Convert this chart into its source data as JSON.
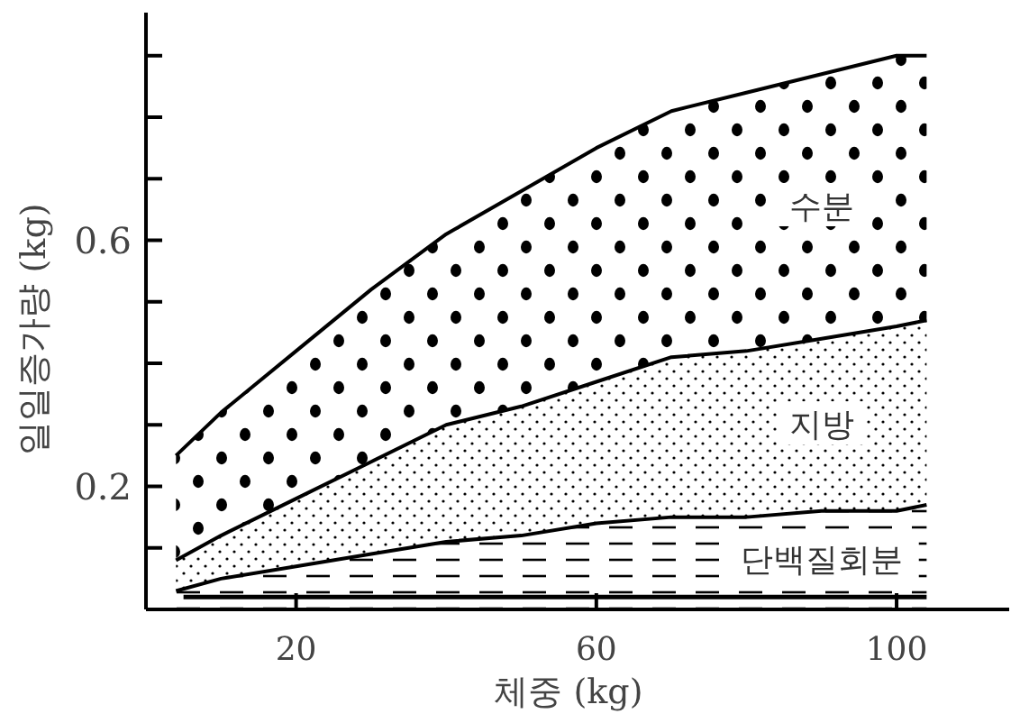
{
  "chart_data": {
    "type": "area",
    "stacked": true,
    "xlabel": "체중 (kg)",
    "ylabel": "일일증가량 (kg)",
    "xlim": [
      0,
      115
    ],
    "ylim": [
      0,
      0.97
    ],
    "xticks": [
      20,
      60,
      100
    ],
    "yticks": [
      {
        "value": 0.1,
        "label": null
      },
      0.2,
      {
        "value": 0.3,
        "label": null
      },
      {
        "value": 0.4,
        "label": null
      },
      {
        "value": 0.5,
        "label": null
      },
      0.6,
      {
        "value": 0.7,
        "label": null
      },
      {
        "value": 0.8,
        "label": null
      },
      {
        "value": 0.9,
        "label": null
      }
    ],
    "x": [
      4,
      10,
      20,
      30,
      40,
      50,
      60,
      70,
      80,
      90,
      100,
      104
    ],
    "series": [
      {
        "type": "line",
        "color": "#000000",
        "x": [
          5,
          104
        ],
        "values": [
          0.02,
          0.02
        ]
      },
      {
        "name": "단백질회분",
        "color": "#000000",
        "values": [
          0.03,
          0.05,
          0.07,
          0.09,
          0.11,
          0.12,
          0.14,
          0.15,
          0.15,
          0.16,
          0.16,
          0.17
        ]
      },
      {
        "name": "지방",
        "color": "#000000",
        "values": [
          0.05,
          0.07,
          0.11,
          0.15,
          0.19,
          0.21,
          0.23,
          0.26,
          0.27,
          0.28,
          0.3,
          0.3
        ]
      },
      {
        "name": "수분",
        "color": "#000000",
        "values": [
          0.17,
          0.2,
          0.24,
          0.28,
          0.31,
          0.35,
          0.38,
          0.4,
          0.42,
          0.43,
          0.44,
          0.43
        ]
      }
    ]
  }
}
